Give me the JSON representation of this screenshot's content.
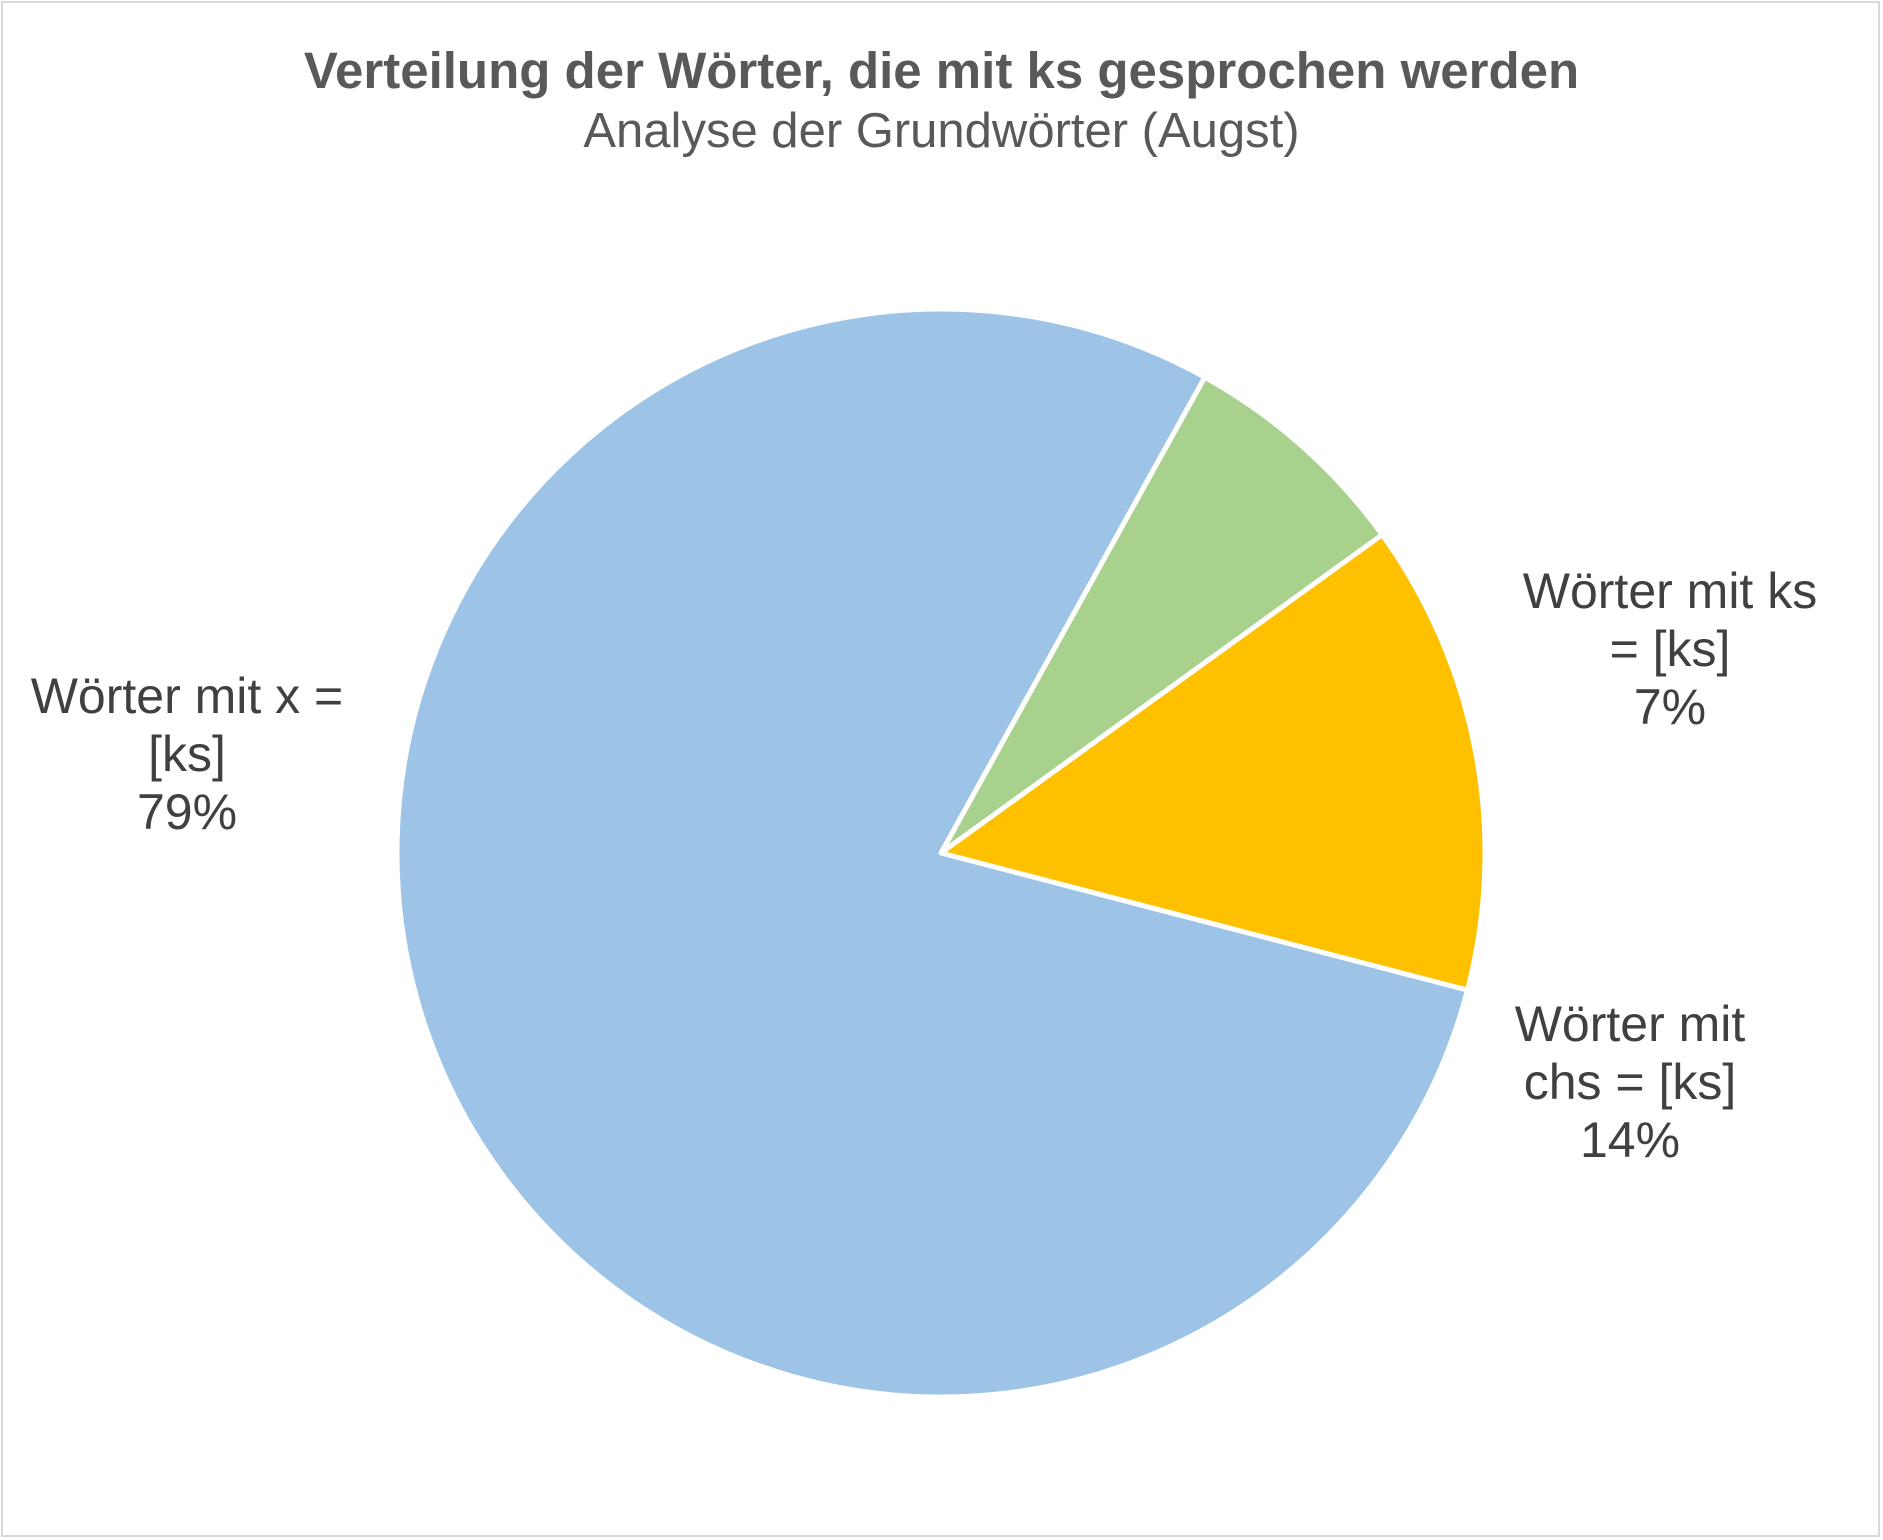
{
  "chart_data": {
    "type": "pie",
    "title": "Verteilung der Wörter, die mit ks gesprochen werden",
    "subtitle": "Analyse der Grundwörter (Augst)",
    "slices": [
      {
        "label": "Wörter mit ks = [ks]",
        "value": 7,
        "display": "Wörter mit ks\n= [ks]\n7%",
        "color": "#a9d18e"
      },
      {
        "label": "Wörter mit chs = [ks]",
        "value": 14,
        "display": "Wörter mit\nchs = [ks]\n14%",
        "color": "#ffc000"
      },
      {
        "label": "Wörter mit x = [ks]",
        "value": 79,
        "display": "Wörter mit x =\n[ks]\n79%",
        "color": "#9dc3e6"
      }
    ],
    "start_angle_deg": 29,
    "direction": "clockwise",
    "legend": "none",
    "slice_border_color": "#ffffff"
  }
}
